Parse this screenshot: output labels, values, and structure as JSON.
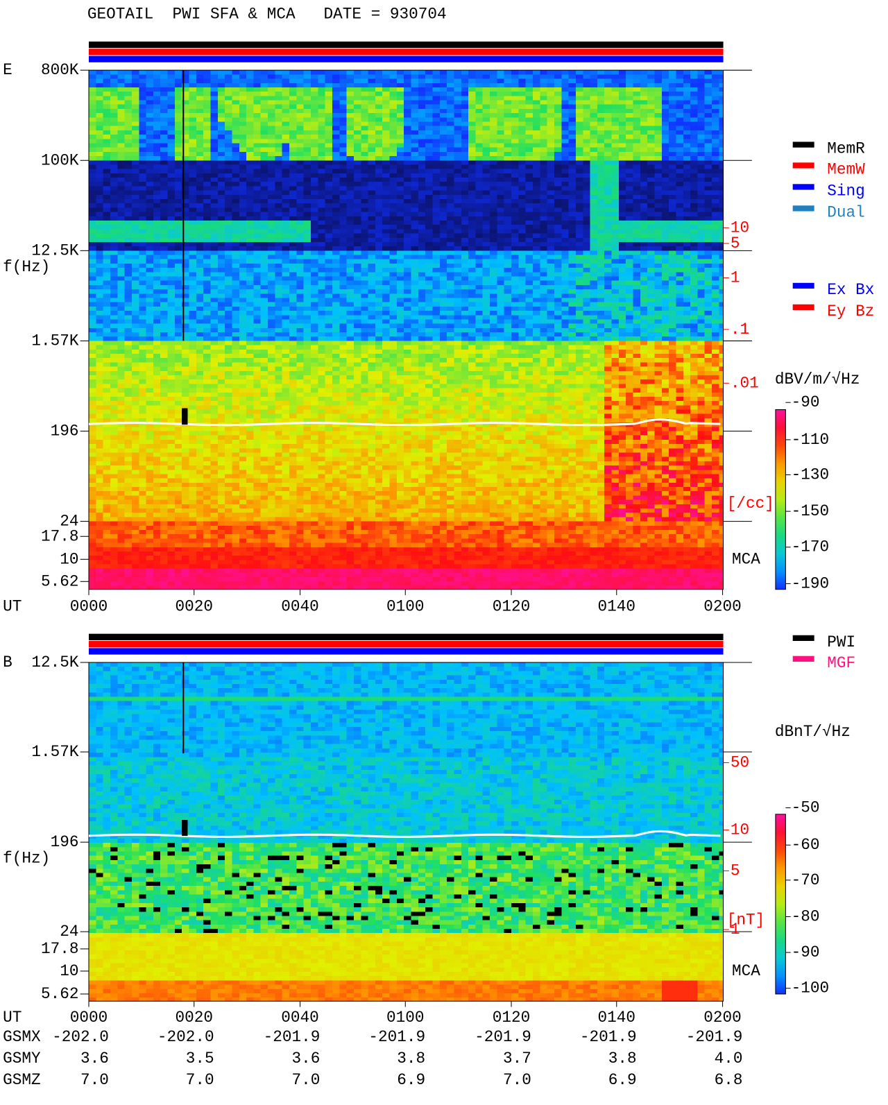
{
  "header": {
    "title": "GEOTAIL  PWI SFA & MCA   DATE = 930704"
  },
  "panels": [
    {
      "label": "E",
      "y_axis_title": "f(Hz)",
      "y_ticks": [
        "800K",
        "100K",
        "12.5K",
        "1.57K",
        "196",
        "24",
        "17.8",
        "10",
        "5.62"
      ],
      "x_axis_title": "UT",
      "x_ticks": [
        "0000",
        "0020",
        "0040",
        "0100",
        "0120",
        "0140",
        "0200"
      ],
      "right_labels": [
        "10",
        "5",
        "1",
        ".1",
        ".01",
        "[/cc]"
      ],
      "mca_label": "MCA",
      "legend": [
        {
          "label": "MemR",
          "color": "#000000"
        },
        {
          "label": "MemW",
          "color": "#ff0000"
        },
        {
          "label": "Sing",
          "color": "#0000ff"
        },
        {
          "label": "Dual",
          "color": "#2080c0"
        },
        {
          "label": "Ex Bx",
          "color": "#0000ff"
        },
        {
          "label": "Ey Bz",
          "color": "#ff0000"
        }
      ],
      "colorbar": {
        "unit": "dBV/m/√Hz",
        "ticks": [
          "-90",
          "-110",
          "-130",
          "-150",
          "-170",
          "-190"
        ]
      }
    },
    {
      "label": "B",
      "y_axis_title": "f(Hz)",
      "y_ticks": [
        "12.5K",
        "1.57K",
        "196",
        "24",
        "17.8",
        "10",
        "5.62"
      ],
      "x_axis_title": "UT",
      "x_ticks": [
        "0000",
        "0020",
        "0040",
        "0100",
        "0120",
        "0140",
        "0200"
      ],
      "right_labels": [
        "50",
        "10",
        "5",
        "1",
        "[nT]"
      ],
      "mca_label": "MCA",
      "legend": [
        {
          "label": "PWI",
          "color": "#000000"
        },
        {
          "label": "MGF",
          "color": "#ff1080"
        }
      ],
      "colorbar": {
        "unit": "dBnT/√Hz",
        "ticks": [
          "-50",
          "-60",
          "-70",
          "-80",
          "-90",
          "-100"
        ]
      }
    }
  ],
  "orbit": {
    "rows": [
      {
        "label": "GSMX",
        "values": [
          "-202.0",
          "-202.0",
          "-201.9",
          "-201.9",
          "-201.9",
          "-201.9",
          "-201.9"
        ]
      },
      {
        "label": "GSMY",
        "values": [
          "3.6",
          "3.5",
          "3.6",
          "3.8",
          "3.7",
          "3.8",
          "4.0"
        ]
      },
      {
        "label": "GSMZ",
        "values": [
          "7.0",
          "7.0",
          "7.0",
          "6.9",
          "7.0",
          "6.9",
          "6.8"
        ]
      }
    ]
  }
}
